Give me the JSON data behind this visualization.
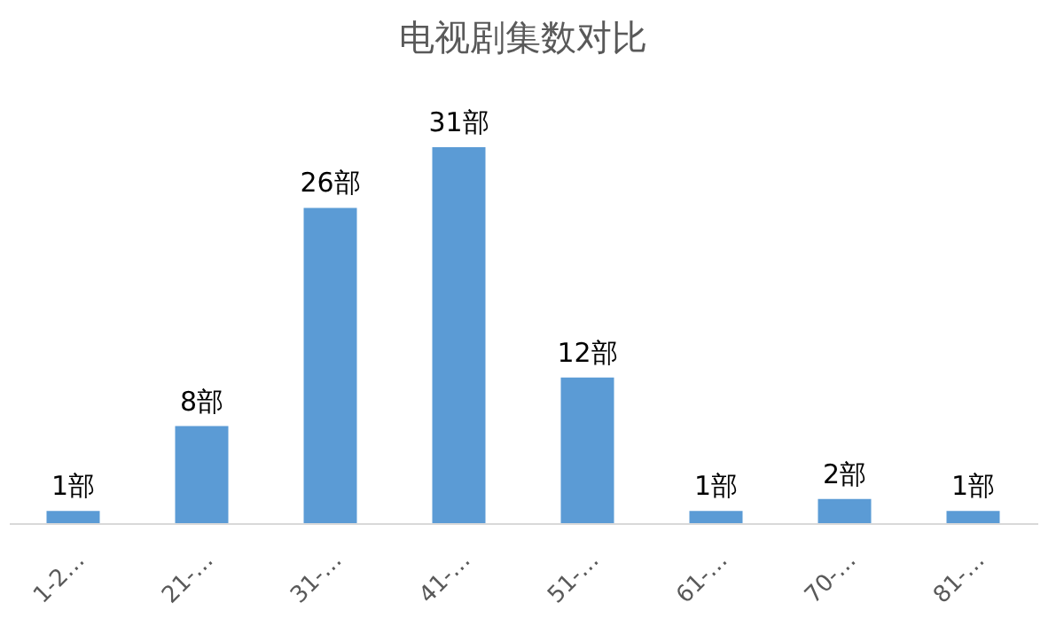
{
  "chart_data": {
    "type": "bar",
    "title": "电视剧集数对比",
    "categories": [
      "1-2…",
      "21-…",
      "31-…",
      "41-…",
      "51-…",
      "61-…",
      "70-…",
      "81-…"
    ],
    "values": [
      1,
      8,
      26,
      31,
      12,
      1,
      2,
      1
    ],
    "value_labels": [
      "1部",
      "8部",
      "26部",
      "31部",
      "12部",
      "1部",
      "2部",
      "1部"
    ],
    "color": "#5b9bd5",
    "grid": false
  }
}
